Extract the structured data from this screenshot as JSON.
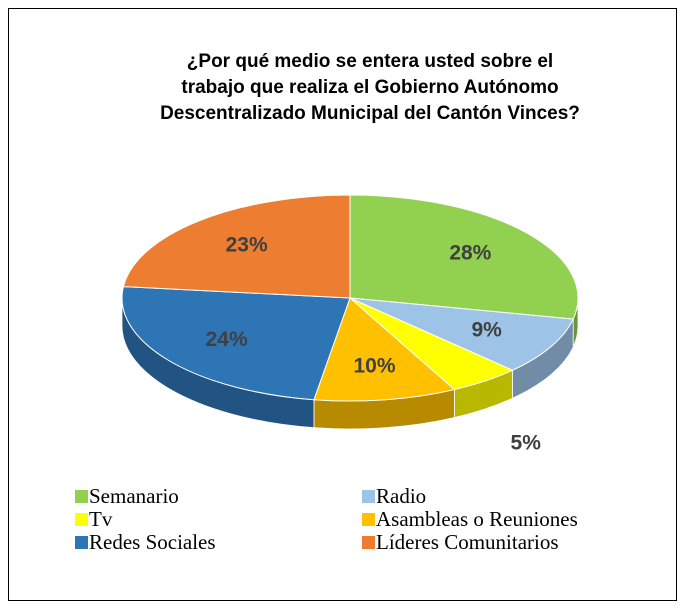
{
  "chart_data": {
    "type": "pie3d",
    "title": [
      "¿Por qué medio se entera usted sobre el",
      "trabajo que realiza el Gobierno Autónomo",
      "Descentralizado Municipal del Cantón Vinces?"
    ],
    "categories": [
      "Semanario",
      "Radio",
      "Tv",
      "Asambleas o Reuniones",
      "Redes Sociales",
      "Líderes Comunitarios"
    ],
    "values": [
      28,
      9,
      5,
      10,
      24,
      23
    ],
    "value_labels": [
      "28%",
      "9%",
      "5%",
      "10%",
      "24%",
      "23%"
    ],
    "colors": [
      "#92d050",
      "#9dc3e6",
      "#ffff00",
      "#ffc000",
      "#2e75b6",
      "#ed7d31"
    ],
    "legend": "bottom"
  }
}
